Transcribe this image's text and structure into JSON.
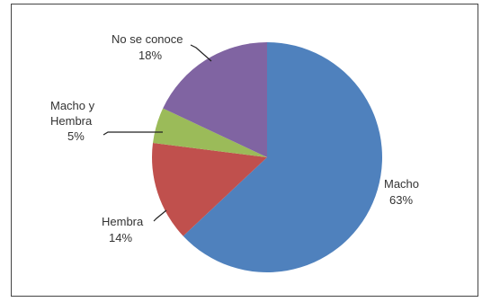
{
  "chart_data": {
    "type": "pie",
    "title": "",
    "categories": [
      "Macho",
      "Hembra",
      "Macho y Hembra",
      "No se conoce"
    ],
    "values": [
      63,
      14,
      5,
      18
    ],
    "labels": [
      {
        "lines": [
          "Macho",
          "63%"
        ]
      },
      {
        "lines": [
          "Hembra",
          "14%"
        ]
      },
      {
        "lines": [
          "Macho y",
          "Hembra",
          "5%"
        ]
      },
      {
        "lines": [
          "No se conoce",
          "18%"
        ]
      }
    ],
    "colors": [
      "#4f81bd",
      "#c0504d",
      "#9bbb59",
      "#8064a2"
    ],
    "legend": "none",
    "start_angle": "12 o'clock",
    "direction": "clockwise"
  }
}
